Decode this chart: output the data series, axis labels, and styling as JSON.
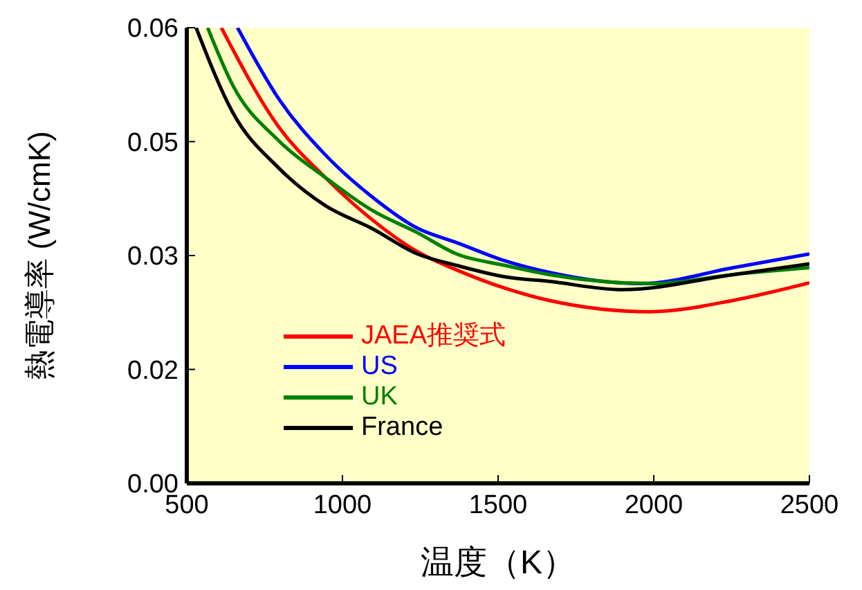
{
  "chart_data": {
    "type": "line",
    "xlabel": "温度（K）",
    "ylabel": "熱電導率 (W/cmK)",
    "xlim": [
      500,
      2500
    ],
    "xticks": [
      500,
      1000,
      1500,
      2000,
      2500
    ],
    "ylim": [
      0,
      0.06
    ],
    "yticks": [
      {
        "value": 0,
        "label": "0.00"
      },
      {
        "value": 0.015,
        "label": "0.02"
      },
      {
        "value": 0.03,
        "label": "0.03"
      },
      {
        "value": 0.045,
        "label": "0.05"
      },
      {
        "value": 0.06,
        "label": "0.06"
      }
    ],
    "grid": false,
    "legend": "bottom left",
    "marker": "none",
    "line_style": "solid",
    "series": [
      {
        "name": "JAEA推奨式",
        "color": "#ff0000",
        "x": [
          611,
          796,
          944,
          1093,
          1241,
          1367,
          1522,
          1663,
          1989,
          2256,
          2500
        ],
        "values": [
          0.06,
          0.0469,
          0.0403,
          0.0348,
          0.0305,
          0.0281,
          0.0257,
          0.0241,
          0.0226,
          0.0241,
          0.0264
        ]
      },
      {
        "name": "US",
        "color": "#0000ff",
        "x": [
          663,
          796,
          944,
          1093,
          1241,
          1367,
          1522,
          1663,
          1959,
          2256,
          2500
        ],
        "values": [
          0.06,
          0.0506,
          0.0433,
          0.0378,
          0.0336,
          0.0317,
          0.0293,
          0.0278,
          0.0263,
          0.0284,
          0.0302
        ]
      },
      {
        "name": "UK",
        "color": "#008000",
        "x": [
          567,
          648,
          796,
          944,
          1093,
          1241,
          1367,
          1522,
          1663,
          2000,
          2256,
          2500
        ],
        "values": [
          0.06,
          0.0524,
          0.0451,
          0.0403,
          0.036,
          0.033,
          0.0302,
          0.0287,
          0.0275,
          0.0263,
          0.0275,
          0.0284
        ]
      },
      {
        "name": "France",
        "color": "#000000",
        "x": [
          530,
          648,
          796,
          944,
          1093,
          1241,
          1367,
          1522,
          1663,
          1900,
          2256,
          2500
        ],
        "values": [
          0.06,
          0.0488,
          0.0415,
          0.0366,
          0.0336,
          0.0302,
          0.0287,
          0.0272,
          0.0266,
          0.0255,
          0.0275,
          0.0289
        ]
      }
    ]
  }
}
